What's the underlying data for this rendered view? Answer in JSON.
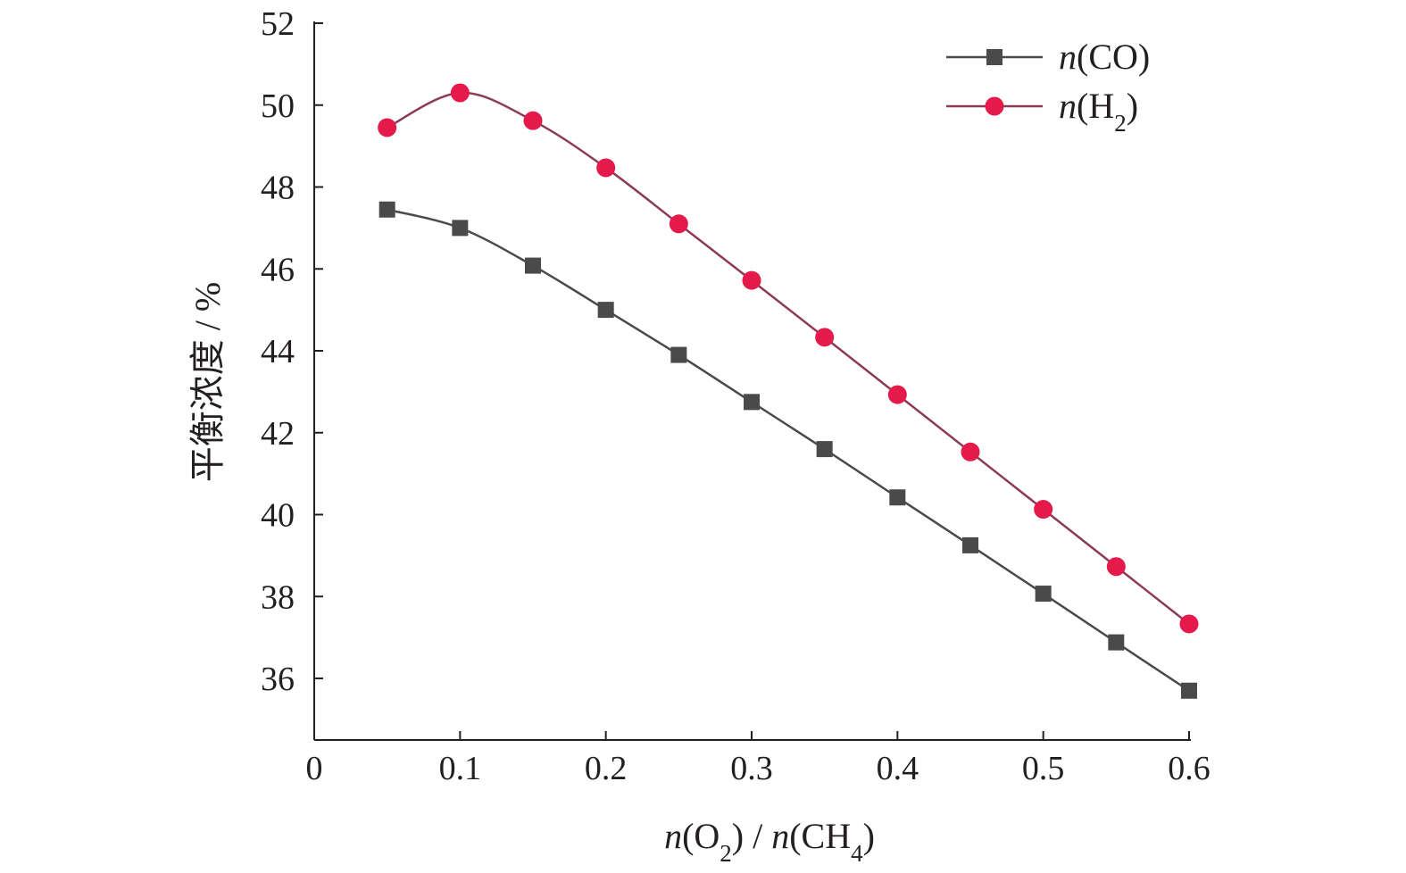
{
  "chart_data": {
    "type": "line",
    "title": "",
    "xlabel": "n(O2) / n(CH4)",
    "ylabel": "平衡浓度 / %",
    "xlim": [
      0,
      0.6
    ],
    "ylim": [
      34.5,
      52
    ],
    "xticks": [
      0,
      0.1,
      0.2,
      0.3,
      0.4,
      0.5,
      0.6
    ],
    "xtick_labels": [
      "0",
      "0.1",
      "0.2",
      "0.3",
      "0.4",
      "0.5",
      "0.6"
    ],
    "yticks": [
      36,
      38,
      40,
      42,
      44,
      46,
      48,
      50,
      52
    ],
    "ytick_labels": [
      "36",
      "38",
      "40",
      "42",
      "44",
      "46",
      "48",
      "50",
      "52"
    ],
    "grid": false,
    "legend_position": "top-right",
    "x": [
      0.05,
      0.1,
      0.15,
      0.2,
      0.25,
      0.3,
      0.35,
      0.4,
      0.45,
      0.5,
      0.55,
      0.6
    ],
    "series": [
      {
        "name": "n(CO)",
        "marker": "square",
        "color": "#4a4a4a",
        "line_color": "#4a4a4a",
        "values": [
          47.45,
          47.0,
          46.08,
          45.0,
          43.9,
          42.75,
          41.6,
          40.42,
          39.25,
          38.07,
          36.88,
          35.7
        ]
      },
      {
        "name": "n(H2)",
        "marker": "circle",
        "color": "#e31a4a",
        "line_color": "#8b3a5a",
        "values": [
          49.45,
          50.3,
          49.62,
          48.47,
          47.1,
          45.72,
          44.33,
          42.93,
          41.53,
          40.13,
          38.73,
          37.33
        ]
      }
    ]
  }
}
